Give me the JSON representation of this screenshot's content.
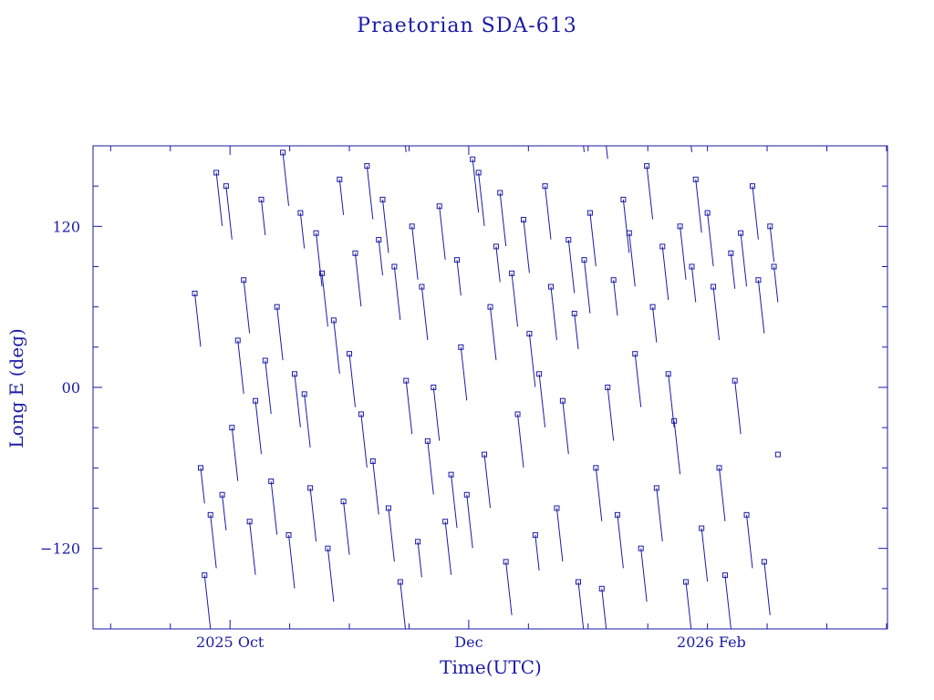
{
  "chart_data": {
    "type": "line",
    "title": "Praetorian SDA-613",
    "xlabel": "Time(UTC)",
    "ylabel": "Long E (deg)",
    "x_unit": "days",
    "x_ticks": [
      {
        "day": 0,
        "label": "2025 Oct"
      },
      {
        "day": 61,
        "label": "Dec"
      },
      {
        "day": 123,
        "label": "2026 Feb"
      }
    ],
    "y_ticks": [
      {
        "value": 120,
        "label": "120"
      },
      {
        "value": 0,
        "label": "00"
      },
      {
        "value": -120,
        "label": "−120"
      }
    ],
    "xlim": [
      -35,
      168
    ],
    "ylim": [
      -180,
      180
    ],
    "grid": false,
    "marker": "square",
    "series_color": "#1a1aa6",
    "series": [
      {
        "x_start": -9,
        "x_end": 140,
        "drift_deg_per_day": -26.5,
        "x": [
          -9.0,
          -7.5,
          -6.5,
          -5.0,
          -3.5,
          -2.0,
          -1.0,
          0.5,
          2.0,
          3.5,
          5.0,
          6.5,
          8.0,
          9.0,
          10.5,
          12.0,
          13.5,
          15.0,
          16.5,
          18.0,
          19.0,
          20.5,
          22.0,
          23.5,
          25.0,
          26.5,
          28.0,
          29.0,
          30.5,
          32.0,
          33.5,
          35.0,
          36.5,
          38.0,
          39.0,
          40.5,
          42.0,
          43.5,
          45.0,
          46.5,
          48.0,
          49.0,
          50.5,
          52.0,
          53.5,
          55.0,
          56.5,
          58.0,
          59.0,
          60.5,
          62.0,
          63.5,
          65.0,
          66.5,
          68.0,
          69.0,
          70.5,
          72.0,
          73.5,
          75.0,
          76.5,
          78.0,
          79.0,
          80.5,
          82.0,
          83.5,
          85.0,
          86.5,
          88.0,
          89.0,
          90.5,
          92.0,
          93.5,
          95.0,
          96.5,
          98.0,
          99.0,
          100.5,
          102.0,
          103.5,
          105.0,
          106.5,
          108.0,
          109.0,
          110.5,
          112.0,
          113.5,
          115.0,
          116.5,
          118.0,
          119.0,
          120.5,
          122.0,
          123.5,
          125.0,
          126.5,
          128.0,
          129.0,
          130.5,
          132.0,
          133.5,
          135.0,
          136.5,
          138.0,
          139.0,
          140.0
        ],
        "y": [
          70,
          -60,
          -140,
          -95,
          160,
          -80,
          150,
          -30,
          35,
          80,
          -100,
          -10,
          140,
          20,
          -70,
          60,
          175,
          -110,
          10,
          130,
          -5,
          -75,
          115,
          85,
          -120,
          50,
          155,
          -85,
          25,
          100,
          -20,
          165,
          -55,
          110,
          140,
          -90,
          90,
          -145,
          5,
          120,
          -115,
          75,
          -40,
          0,
          135,
          -100,
          -65,
          95,
          30,
          -80,
          170,
          160,
          -50,
          60,
          105,
          145,
          -130,
          85,
          -20,
          125,
          40,
          -110,
          10,
          150,
          75,
          -90,
          -10,
          110,
          55,
          -145,
          95,
          130,
          -60,
          -150,
          0,
          80,
          -95,
          140,
          115,
          25,
          -120,
          165,
          60,
          -75,
          105,
          10,
          -25,
          120,
          -145,
          90,
          155,
          -105,
          130,
          75,
          -60,
          -140,
          100,
          5,
          115,
          -95,
          150,
          80,
          -130,
          120,
          90,
          -50
        ]
      }
    ]
  }
}
